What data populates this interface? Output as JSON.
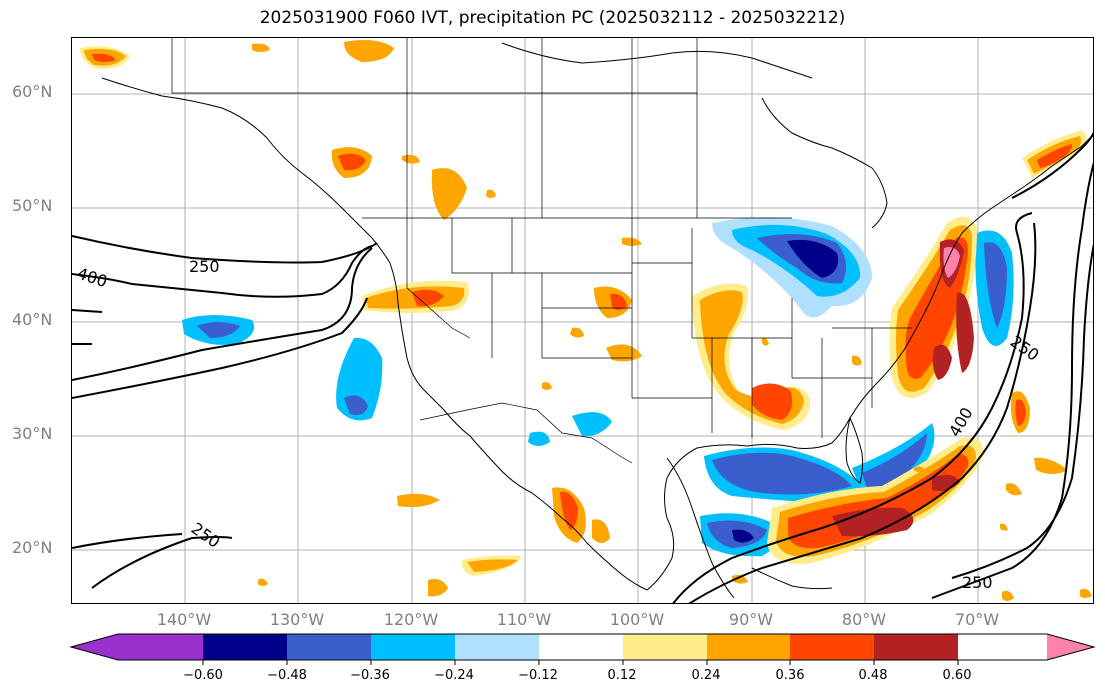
{
  "title": "2025031900 F060 IVT, precipitation PC (2025032112 - 2025032212)",
  "lat_labels": [
    "60°N",
    "50°N",
    "40°N",
    "30°N",
    "20°N"
  ],
  "lon_labels": [
    "140°W",
    "130°W",
    "120°W",
    "110°W",
    "100°W",
    "90°W",
    "80°W",
    "70°W"
  ],
  "contour_labels": [
    "400",
    "250",
    "250",
    "250",
    "400",
    "250"
  ],
  "colorbar": {
    "ticks": [
      "−0.60",
      "−0.48",
      "−0.36",
      "−0.24",
      "−0.12",
      "0.12",
      "0.24",
      "0.36",
      "0.48",
      "0.60"
    ],
    "colors": [
      "#9932cc",
      "#00008b",
      "#3a5fcd",
      "#00bfff",
      "#b0e0ff",
      "#ffffff",
      "#ffec8b",
      "#ffa500",
      "#ff4500",
      "#b22222",
      "#ff82ab"
    ]
  }
}
